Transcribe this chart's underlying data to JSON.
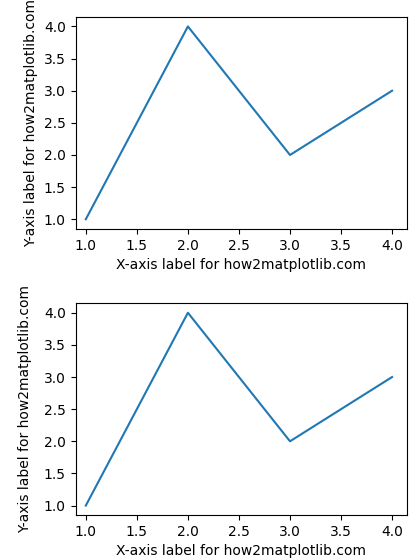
{
  "x": [
    1,
    2,
    3,
    4
  ],
  "y": [
    1,
    4,
    2,
    3
  ],
  "xlabel": "X-axis label for how2matplotlib.com",
  "ylabel": "Y-axis label for how2matplotlib.com",
  "line_color": "#1f77b4",
  "xlim": [
    0.9,
    4.15
  ],
  "ylim": [
    0.85,
    4.15
  ],
  "figsize": [
    4.2,
    5.6
  ],
  "dpi": 100,
  "bg_color": "#ffffff",
  "tick_fontsize": 10,
  "label_fontsize": 10
}
